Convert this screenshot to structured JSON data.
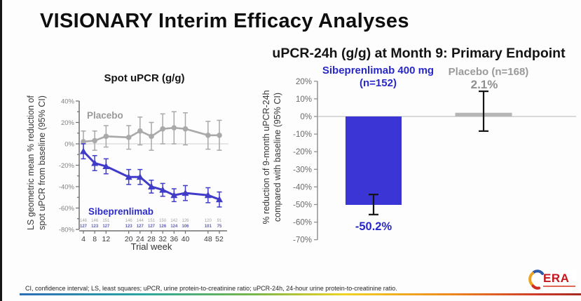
{
  "slide": {
    "title": "VISIONARY Interim Efficacy Analyses",
    "footnote": "CI, confidence interval; LS, least squares; uPCR, urine protein-to-creatinine ratio; uPCR-24h, 24-hour urine protein-to-creatinine ratio.",
    "logo": {
      "text": "ERA"
    }
  },
  "colors": {
    "sibeprenlimab_blue_bar": "#3a35d4",
    "sibeprenlimab_blue_line": "#403cc8",
    "sibeprenlimab_label_blue": "#2828c8",
    "placebo_gray_bar": "#b5b5b5",
    "placebo_gray_line": "#a9a9a9",
    "placebo_label_gray": "#9a9a9a",
    "error_bar_black": "#141414",
    "axis_gray": "#6e6e6e"
  },
  "chart_data": [
    {
      "id": "spot_upcr",
      "type": "line",
      "title": "Spot uPCR (g/g)",
      "xlabel": "Trial week",
      "ylabel_line1": "LS geometric mean % reduction of",
      "ylabel_line2": "spot uPCR from baseline (95% CI)",
      "x": [
        4,
        8,
        12,
        20,
        24,
        28,
        32,
        36,
        40,
        48,
        52
      ],
      "ylim": [
        -80,
        40
      ],
      "ytick_major_step": 20,
      "ytick_minor_step": 10,
      "grid": "zero-line-only",
      "series": [
        {
          "name": "Placebo",
          "color": "#a9a9a9",
          "label_color": "#9a9a9a",
          "marker": "circle",
          "values": [
            2,
            3,
            7,
            6,
            12,
            7,
            14,
            15,
            14,
            8,
            8
          ],
          "err": [
            10,
            9,
            10,
            11,
            13,
            13,
            14,
            15,
            15,
            13,
            14
          ],
          "n": [
            146,
            146,
            151,
            146,
            144,
            151,
            150,
            142,
            126,
            120,
            91
          ]
        },
        {
          "name": "Sibeprenlimab",
          "color": "#403cc8",
          "label_color": "#2c2cc4",
          "marker": "triangle",
          "values": [
            -7,
            -18,
            -21,
            -31,
            -31,
            -40,
            -43,
            -48,
            -46,
            -48,
            -52
          ],
          "err": [
            7,
            7,
            7,
            7,
            7,
            6,
            6,
            6,
            7,
            7,
            7
          ],
          "n": [
            127,
            123,
            127,
            123,
            127,
            127,
            126,
            124,
            106,
            101,
            75
          ]
        }
      ]
    },
    {
      "id": "upcr_24h_month9",
      "type": "bar",
      "title": "uPCR-24h (g/g) at Month 9: Primary Endpoint",
      "ylabel_line1": "% reduction of 9-month uPCR-24h",
      "ylabel_line2": "compared with baseline (95% CI)",
      "ylim": [
        -70,
        20
      ],
      "ytick_step": 10,
      "grid": "zero-line-only",
      "bars": [
        {
          "group_label_line1": "Sibeprenlimab 400 mg",
          "group_label_line2": "(n=152)",
          "value": -50.2,
          "value_label": "-50.2%",
          "value_label_color": "#2828c8",
          "ci": [
            -55.7,
            -44.3
          ],
          "color": "#3a35d4"
        },
        {
          "group_label_line1": "Placebo (n=168)",
          "group_label_line2": "",
          "value": 2.1,
          "value_label": "2.1%",
          "value_label_color": "#8f8f8f",
          "ci": [
            -8.3,
            14.3
          ],
          "color": "#b5b5b5"
        }
      ]
    }
  ]
}
